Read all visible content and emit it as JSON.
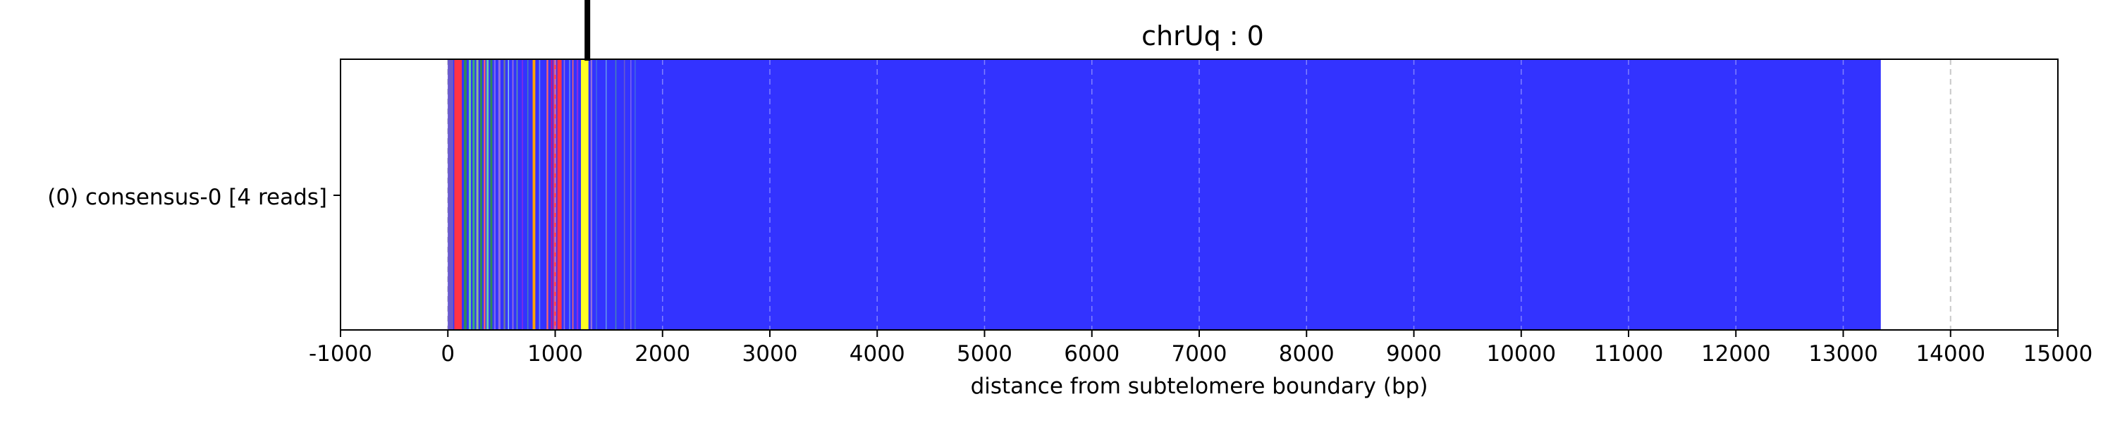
{
  "chart_data": {
    "type": "bar",
    "title": "chrUq : 0",
    "xlabel": "distance from subtelomere boundary (bp)",
    "ylabel": "",
    "xlim": [
      -1000,
      15000
    ],
    "xticks": [
      "-1000",
      "0",
      "1000",
      "2000",
      "3000",
      "4000",
      "5000",
      "6000",
      "7000",
      "8000",
      "9000",
      "10000",
      "11000",
      "12000",
      "13000",
      "14000",
      "15000"
    ],
    "grid": "vertical dashed",
    "track_label": "(0) consensus-0 [4 reads]",
    "track": {
      "start": 0,
      "end": 13350,
      "base_color": "#3333ff",
      "segments": [
        {
          "start": 0,
          "end": 50,
          "color": "#6a5acd"
        },
        {
          "start": 60,
          "end": 130,
          "color": "#ff3344"
        },
        {
          "start": 150,
          "end": 175,
          "color": "#2e8b57"
        },
        {
          "start": 195,
          "end": 215,
          "color": "#66cc99"
        },
        {
          "start": 230,
          "end": 250,
          "color": "#3cb371"
        },
        {
          "start": 265,
          "end": 285,
          "color": "#8fbc8f"
        },
        {
          "start": 300,
          "end": 320,
          "color": "#2e8b57"
        },
        {
          "start": 335,
          "end": 350,
          "color": "#ff6666"
        },
        {
          "start": 360,
          "end": 380,
          "color": "#66cdaa"
        },
        {
          "start": 395,
          "end": 415,
          "color": "#2e8b57"
        },
        {
          "start": 430,
          "end": 445,
          "color": "#7b68ee"
        },
        {
          "start": 470,
          "end": 490,
          "color": "#9370db"
        },
        {
          "start": 520,
          "end": 535,
          "color": "#708090"
        },
        {
          "start": 560,
          "end": 570,
          "color": "#87ceeb"
        },
        {
          "start": 600,
          "end": 612,
          "color": "#9370db"
        },
        {
          "start": 640,
          "end": 650,
          "color": "#5f9ea0"
        },
        {
          "start": 690,
          "end": 700,
          "color": "#8a2be2"
        },
        {
          "start": 740,
          "end": 750,
          "color": "#4682b4"
        },
        {
          "start": 790,
          "end": 815,
          "color": "#ffa500"
        },
        {
          "start": 850,
          "end": 860,
          "color": "#6495ed"
        },
        {
          "start": 920,
          "end": 935,
          "color": "#ff6666"
        },
        {
          "start": 960,
          "end": 975,
          "color": "#c71585"
        },
        {
          "start": 985,
          "end": 1010,
          "color": "#ff4455"
        },
        {
          "start": 1020,
          "end": 1060,
          "color": "#ff3344"
        },
        {
          "start": 1080,
          "end": 1090,
          "color": "#9370db"
        },
        {
          "start": 1130,
          "end": 1140,
          "color": "#6495ed"
        },
        {
          "start": 1160,
          "end": 1170,
          "color": "#ff6666"
        },
        {
          "start": 1200,
          "end": 1215,
          "color": "#8a2be2"
        },
        {
          "start": 1240,
          "end": 1310,
          "color": "#ffff22"
        },
        {
          "start": 1330,
          "end": 1345,
          "color": "#9370db"
        },
        {
          "start": 1380,
          "end": 1390,
          "color": "#4169e1"
        },
        {
          "start": 1470,
          "end": 1480,
          "color": "#6495ed"
        },
        {
          "start": 1560,
          "end": 1570,
          "color": "#4682b4"
        },
        {
          "start": 1640,
          "end": 1650,
          "color": "#6a5acd"
        },
        {
          "start": 1700,
          "end": 1710,
          "color": "#7b68ee"
        },
        {
          "start": 1740,
          "end": 1750,
          "color": "#4169e1"
        }
      ]
    },
    "marker": {
      "x": 1300,
      "color": "#000000"
    }
  }
}
